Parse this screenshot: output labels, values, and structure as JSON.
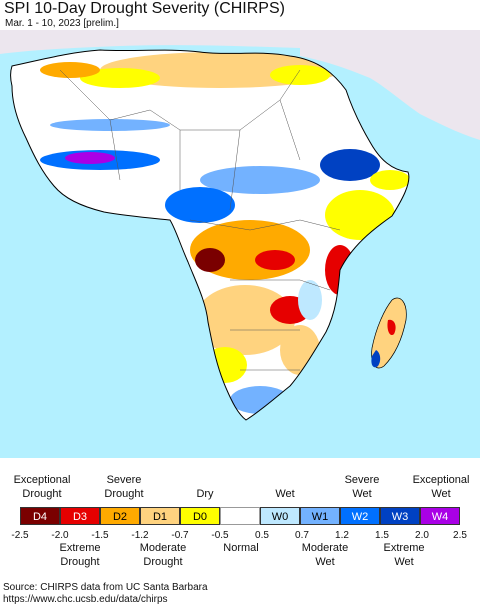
{
  "header": {
    "title": "SPI 10-Day Drought Severity (CHIRPS)",
    "subtitle": "Mar. 1 - 10, 2023 [prelim.]"
  },
  "map": {
    "region": "Africa",
    "colors": {
      "ocean": "#b3f0ff",
      "other_land": "#ece6ee",
      "no_data": "#ffffff",
      "border": "#000000"
    }
  },
  "legend": {
    "top_labels": [
      {
        "line1": "Exceptional",
        "line2": "Drought"
      },
      {
        "line1": "Severe",
        "line2": "Drought"
      },
      {
        "line1": "Dry",
        "line2": ""
      },
      {
        "line1": "Wet",
        "line2": ""
      },
      {
        "line1": "Severe",
        "line2": "Wet"
      },
      {
        "line1": "Exceptional",
        "line2": "Wet"
      }
    ],
    "classes": [
      {
        "code": "D4",
        "color": "#7a0000",
        "text_color": "#ffffff"
      },
      {
        "code": "D3",
        "color": "#e60000",
        "text_color": "#ffffff"
      },
      {
        "code": "D2",
        "color": "#ffaa00",
        "text_color": "#000000"
      },
      {
        "code": "D1",
        "color": "#ffd37f",
        "text_color": "#000000"
      },
      {
        "code": "D0",
        "color": "#ffff00",
        "text_color": "#000000"
      },
      {
        "code": "",
        "color": "#ffffff",
        "text_color": "#000000"
      },
      {
        "code": "W0",
        "color": "#bee8ff",
        "text_color": "#000000"
      },
      {
        "code": "W1",
        "color": "#73b2ff",
        "text_color": "#000000"
      },
      {
        "code": "W2",
        "color": "#0070ff",
        "text_color": "#ffffff"
      },
      {
        "code": "W3",
        "color": "#0041c2",
        "text_color": "#ffffff"
      },
      {
        "code": "W4",
        "color": "#a900e6",
        "text_color": "#ffffff"
      }
    ],
    "ticks": [
      "-2.5",
      "-2.0",
      "-1.5",
      "-1.2",
      "-0.7",
      "-0.5",
      "0.5",
      "0.7",
      "1.2",
      "1.5",
      "2.0",
      "2.5"
    ],
    "bottom_labels": [
      {
        "line1": "Extreme",
        "line2": "Drought"
      },
      {
        "line1": "Moderate",
        "line2": "Drought"
      },
      {
        "line1": "Normal",
        "line2": ""
      },
      {
        "line1": "Moderate",
        "line2": "Wet"
      },
      {
        "line1": "Extreme",
        "line2": "Wet"
      }
    ]
  },
  "source": {
    "line1": "Source: CHIRPS data from UC Santa Barbara",
    "line2": "https://www.chc.ucsb.edu/data/chirps"
  }
}
